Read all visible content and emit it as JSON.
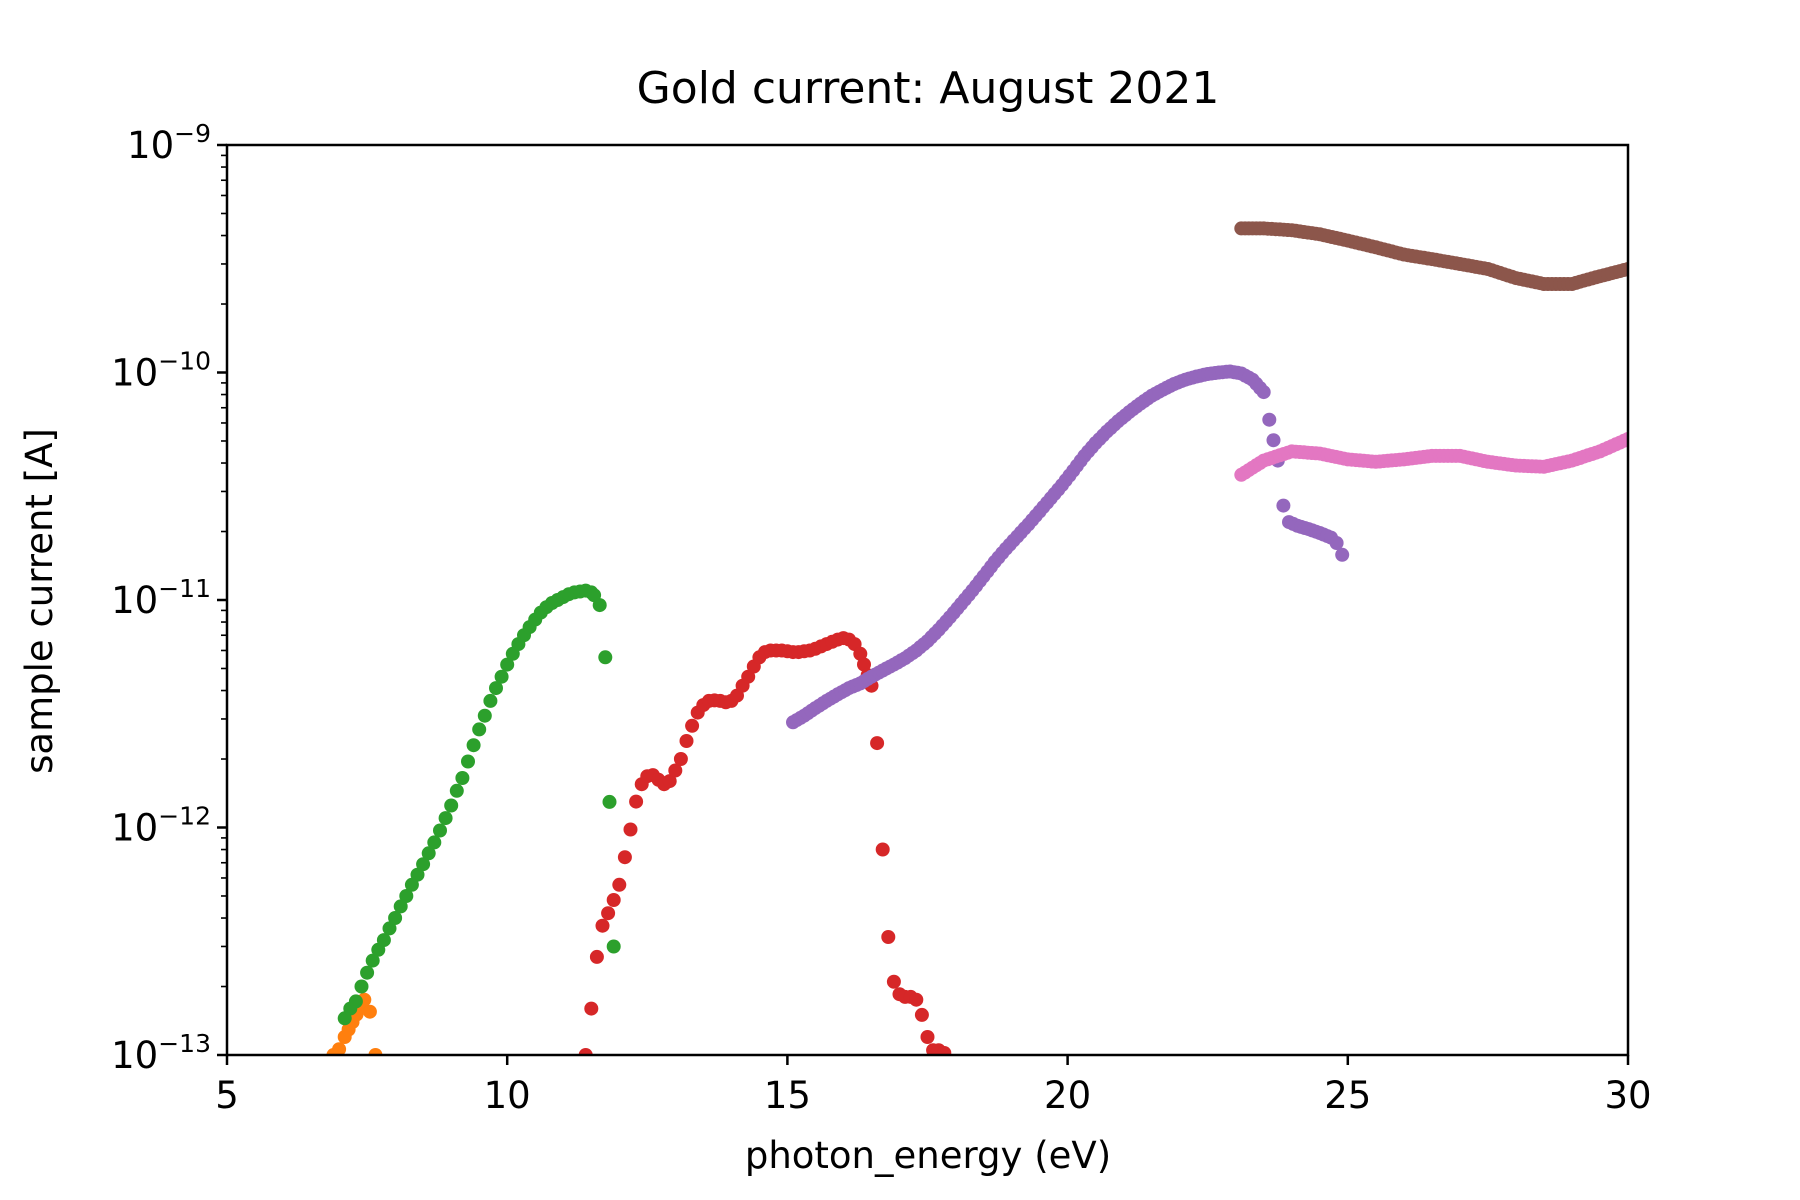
{
  "chart_data": {
    "type": "scatter",
    "title": "Gold current: August 2021",
    "xlabel": "photon_energy (eV)",
    "ylabel": "sample current [A]",
    "xlim": [
      5,
      30
    ],
    "ylim": [
      1e-13,
      1e-09
    ],
    "yscale": "log",
    "grid": false,
    "xticks": [
      5,
      10,
      15,
      20,
      25,
      30
    ],
    "yticks": [
      {
        "value": 1e-13,
        "base": "10",
        "exp": "−13"
      },
      {
        "value": 1e-12,
        "base": "10",
        "exp": "−12"
      },
      {
        "value": 1e-11,
        "base": "10",
        "exp": "−11"
      },
      {
        "value": 1e-10,
        "base": "10",
        "exp": "−10"
      },
      {
        "value": 1e-09,
        "base": "10",
        "exp": "−9"
      }
    ],
    "series": [
      {
        "color": "#ff7f0e",
        "points": [
          [
            6.9,
            1e-13
          ],
          [
            7.0,
            1.06e-13
          ],
          [
            7.1,
            1.2e-13
          ],
          [
            7.45,
            1.75e-13
          ],
          [
            7.55,
            1.55e-13
          ],
          [
            7.65,
            1e-13
          ]
        ]
      },
      {
        "color": "#2ca02c",
        "points": [
          [
            7.1,
            1.45e-13
          ],
          [
            7.2,
            1.6e-13
          ],
          [
            7.3,
            1.72e-13
          ],
          [
            7.4,
            2e-13
          ],
          [
            7.5,
            2.3e-13
          ],
          [
            7.6,
            2.6e-13
          ],
          [
            7.7,
            2.9e-13
          ],
          [
            7.8,
            3.2e-13
          ],
          [
            7.9,
            3.6e-13
          ],
          [
            8.0,
            4e-13
          ],
          [
            8.1,
            4.5e-13
          ],
          [
            8.2,
            5e-13
          ],
          [
            8.3,
            5.6e-13
          ],
          [
            8.4,
            6.2e-13
          ],
          [
            8.5,
            6.9e-13
          ],
          [
            8.6,
            7.7e-13
          ],
          [
            8.7,
            8.6e-13
          ],
          [
            8.8,
            9.7e-13
          ],
          [
            8.9,
            1.1e-12
          ],
          [
            9.0,
            1.25e-12
          ],
          [
            9.1,
            1.45e-12
          ],
          [
            9.2,
            1.65e-12
          ],
          [
            9.3,
            1.95e-12
          ],
          [
            9.4,
            2.3e-12
          ],
          [
            9.5,
            2.7e-12
          ],
          [
            9.6,
            3.1e-12
          ],
          [
            9.7,
            3.6e-12
          ],
          [
            9.8,
            4.1e-12
          ],
          [
            9.9,
            4.6e-12
          ],
          [
            10.0,
            5.2e-12
          ],
          [
            10.1,
            5.8e-12
          ],
          [
            10.2,
            6.4e-12
          ],
          [
            10.3,
            7e-12
          ],
          [
            10.4,
            7.6e-12
          ],
          [
            10.5,
            8.2e-12
          ],
          [
            10.6,
            8.8e-12
          ],
          [
            10.7,
            9.3e-12
          ],
          [
            10.8,
            9.7e-12
          ],
          [
            10.9,
            1e-11
          ],
          [
            11.0,
            1.03e-11
          ],
          [
            11.1,
            1.06e-11
          ],
          [
            11.2,
            1.08e-11
          ],
          [
            11.3,
            1.09e-11
          ],
          [
            11.4,
            1.1e-11
          ],
          [
            11.5,
            1.08e-11
          ],
          [
            11.55,
            1.05e-11
          ],
          [
            11.65,
            9.5e-12
          ],
          [
            11.75,
            5.6e-12
          ],
          [
            11.9,
            3e-13
          ]
        ]
      },
      {
        "color": "#d62728",
        "points": [
          [
            11.4,
            1e-13
          ],
          [
            11.5,
            1.6e-13
          ],
          [
            11.6,
            2.7e-13
          ],
          [
            11.7,
            3.7e-13
          ],
          [
            11.8,
            4.2e-13
          ],
          [
            11.9,
            4.8e-13
          ],
          [
            12.0,
            5.6e-13
          ],
          [
            12.1,
            7.4e-13
          ],
          [
            12.2,
            9.8e-13
          ],
          [
            12.3,
            1.3e-12
          ],
          [
            12.4,
            1.55e-12
          ],
          [
            12.5,
            1.68e-12
          ],
          [
            12.6,
            1.7e-12
          ],
          [
            12.7,
            1.62e-12
          ],
          [
            12.8,
            1.55e-12
          ],
          [
            12.9,
            1.6e-12
          ],
          [
            13.0,
            1.78e-12
          ],
          [
            13.1,
            2e-12
          ],
          [
            13.2,
            2.4e-12
          ],
          [
            13.3,
            2.8e-12
          ],
          [
            13.4,
            3.2e-12
          ],
          [
            13.5,
            3.45e-12
          ],
          [
            13.6,
            3.6e-12
          ],
          [
            13.7,
            3.62e-12
          ],
          [
            13.8,
            3.6e-12
          ],
          [
            13.9,
            3.55e-12
          ],
          [
            14.0,
            3.6e-12
          ],
          [
            14.1,
            3.8e-12
          ],
          [
            14.2,
            4.2e-12
          ],
          [
            14.3,
            4.6e-12
          ],
          [
            14.4,
            5.1e-12
          ],
          [
            14.5,
            5.6e-12
          ],
          [
            14.6,
            5.9e-12
          ],
          [
            14.7,
            6e-12
          ],
          [
            14.8,
            6e-12
          ],
          [
            14.9,
            6e-12
          ],
          [
            15.0,
            5.95e-12
          ],
          [
            15.1,
            5.9e-12
          ],
          [
            15.2,
            5.9e-12
          ],
          [
            15.3,
            5.95e-12
          ],
          [
            15.4,
            6e-12
          ],
          [
            15.5,
            6.1e-12
          ],
          [
            15.6,
            6.25e-12
          ],
          [
            15.7,
            6.4e-12
          ],
          [
            15.8,
            6.55e-12
          ],
          [
            15.9,
            6.7e-12
          ],
          [
            16.0,
            6.8e-12
          ],
          [
            16.1,
            6.7e-12
          ],
          [
            16.2,
            6.4e-12
          ],
          [
            16.3,
            5.8e-12
          ],
          [
            16.5,
            4.2e-12
          ],
          [
            16.6,
            2.35e-12
          ],
          [
            16.7,
            8e-13
          ],
          [
            16.8,
            3.3e-13
          ],
          [
            16.9,
            2.1e-13
          ],
          [
            17.0,
            1.85e-13
          ],
          [
            17.1,
            1.8e-13
          ],
          [
            17.2,
            1.8e-13
          ],
          [
            17.3,
            1.75e-13
          ],
          [
            17.4,
            1.5e-13
          ],
          [
            17.5,
            1.2e-13
          ],
          [
            17.6,
            1.05e-13
          ],
          [
            17.7,
            1.05e-13
          ],
          [
            17.8,
            1.02e-13
          ]
        ]
      },
      {
        "color": "#9467bd",
        "points": [
          [
            15.1,
            2.9e-12
          ],
          [
            15.3,
            3.1e-12
          ],
          [
            15.5,
            3.35e-12
          ],
          [
            15.7,
            3.6e-12
          ],
          [
            15.9,
            3.85e-12
          ],
          [
            16.1,
            4.1e-12
          ],
          [
            16.3,
            4.3e-12
          ],
          [
            16.5,
            4.6e-12
          ],
          [
            16.7,
            4.9e-12
          ],
          [
            16.9,
            5.2e-12
          ],
          [
            17.1,
            5.55e-12
          ],
          [
            17.3,
            6e-12
          ],
          [
            17.5,
            6.6e-12
          ],
          [
            17.7,
            7.4e-12
          ],
          [
            17.9,
            8.4e-12
          ],
          [
            18.1,
            9.6e-12
          ],
          [
            18.3,
            1.1e-11
          ],
          [
            18.5,
            1.27e-11
          ],
          [
            18.7,
            1.47e-11
          ],
          [
            18.9,
            1.68e-11
          ],
          [
            19.1,
            1.9e-11
          ],
          [
            19.3,
            2.15e-11
          ],
          [
            19.5,
            2.45e-11
          ],
          [
            19.7,
            2.8e-11
          ],
          [
            19.9,
            3.2e-11
          ],
          [
            20.1,
            3.7e-11
          ],
          [
            20.3,
            4.3e-11
          ],
          [
            20.5,
            4.9e-11
          ],
          [
            20.7,
            5.5e-11
          ],
          [
            20.9,
            6.1e-11
          ],
          [
            21.1,
            6.7e-11
          ],
          [
            21.3,
            7.3e-11
          ],
          [
            21.5,
            7.9e-11
          ],
          [
            21.7,
            8.4e-11
          ],
          [
            21.9,
            8.9e-11
          ],
          [
            22.1,
            9.3e-11
          ],
          [
            22.3,
            9.6e-11
          ],
          [
            22.5,
            9.85e-11
          ],
          [
            22.7,
            1e-10
          ],
          [
            22.9,
            1.01e-10
          ],
          [
            23.1,
            9.9e-11
          ],
          [
            23.3,
            9.3e-11
          ],
          [
            23.5,
            8.2e-11
          ],
          [
            23.6,
            6.2e-11
          ],
          [
            23.75,
            4.1e-11
          ],
          [
            23.85,
            2.6e-11
          ],
          [
            23.95,
            2.2e-11
          ],
          [
            24.1,
            2.12e-11
          ],
          [
            24.3,
            2.05e-11
          ],
          [
            24.5,
            1.97e-11
          ],
          [
            24.7,
            1.88e-11
          ],
          [
            24.8,
            1.78e-11
          ],
          [
            24.9,
            1.58e-11
          ]
        ]
      },
      {
        "color": "#8c564b",
        "points": [
          [
            23.1,
            4.3e-10
          ],
          [
            23.5,
            4.3e-10
          ],
          [
            24.0,
            4.22e-10
          ],
          [
            24.5,
            4.05e-10
          ],
          [
            25.0,
            3.8e-10
          ],
          [
            25.5,
            3.55e-10
          ],
          [
            26.0,
            3.3e-10
          ],
          [
            26.5,
            3.15e-10
          ],
          [
            27.0,
            3e-10
          ],
          [
            27.5,
            2.85e-10
          ],
          [
            28.0,
            2.6e-10
          ],
          [
            28.5,
            2.45e-10
          ],
          [
            29.0,
            2.45e-10
          ],
          [
            29.5,
            2.65e-10
          ],
          [
            30.0,
            2.85e-10
          ]
        ]
      },
      {
        "color": "#e377c2",
        "points": [
          [
            23.1,
            3.55e-11
          ],
          [
            23.5,
            4.1e-11
          ],
          [
            24.0,
            4.5e-11
          ],
          [
            24.5,
            4.4e-11
          ],
          [
            25.0,
            4.15e-11
          ],
          [
            25.5,
            4.05e-11
          ],
          [
            26.0,
            4.15e-11
          ],
          [
            26.5,
            4.3e-11
          ],
          [
            27.0,
            4.3e-11
          ],
          [
            27.5,
            4.05e-11
          ],
          [
            28.0,
            3.9e-11
          ],
          [
            28.5,
            3.85e-11
          ],
          [
            29.0,
            4.1e-11
          ],
          [
            29.5,
            4.5e-11
          ],
          [
            30.0,
            5.1e-11
          ]
        ]
      }
    ]
  }
}
